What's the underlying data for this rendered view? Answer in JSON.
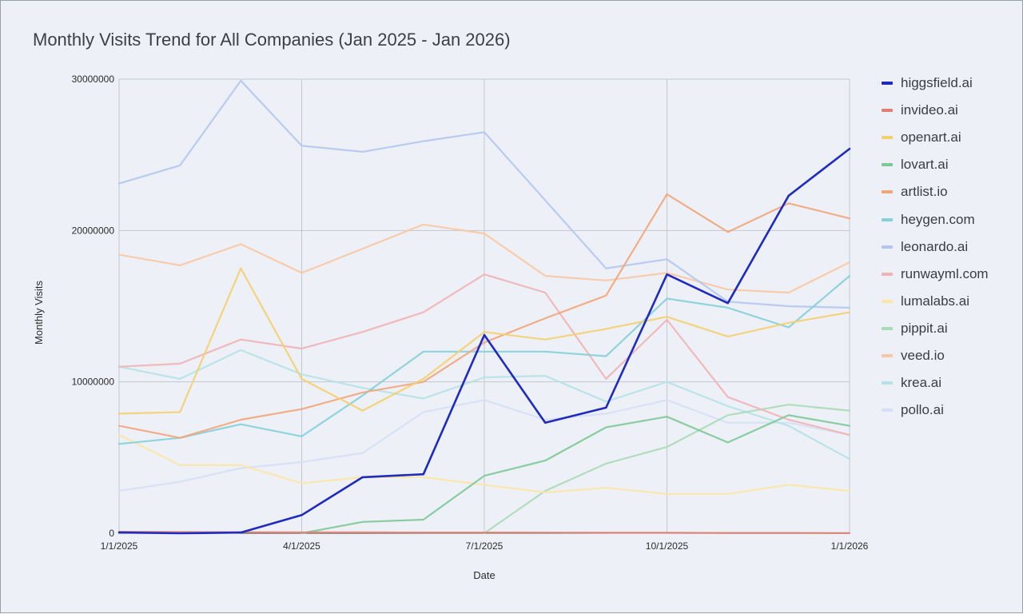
{
  "chart_data": {
    "type": "line",
    "title": "Monthly Visits Trend for All Companies (Jan 2025 - Jan 2026)",
    "xlabel": "Date",
    "ylabel": "Monthly Visits",
    "ylim": [
      0,
      30000000
    ],
    "yticks": [
      "0",
      "10000000",
      "20000000",
      "30000000"
    ],
    "xticks": [
      "1/1/2025",
      "4/1/2025",
      "7/1/2025",
      "10/1/2025",
      "1/1/2026"
    ],
    "x": [
      "1/1/2025",
      "2/1/2025",
      "3/1/2025",
      "4/1/2025",
      "5/1/2025",
      "6/1/2025",
      "7/1/2025",
      "8/1/2025",
      "9/1/2025",
      "10/1/2025",
      "11/1/2025",
      "12/1/2025",
      "1/1/2026"
    ],
    "grid": true,
    "legend_position": "right",
    "series": [
      {
        "name": "higgsfield.ai",
        "color": "#1f2bbf",
        "opacity": 1,
        "values": [
          50000,
          0,
          50000,
          1200000,
          3700000,
          3900000,
          13100000,
          7300000,
          8300000,
          17100000,
          15200000,
          22300000,
          25400000
        ]
      },
      {
        "name": "invideo.ai",
        "color": "#e0806e",
        "opacity": 0.9,
        "values": [
          100000,
          80000,
          70000,
          60000,
          60000,
          50000,
          50000,
          40000,
          30000,
          30000,
          20000,
          20000,
          10000
        ]
      },
      {
        "name": "openart.ai",
        "color": "#f3cf6e",
        "opacity": 0.9,
        "values": [
          7900000,
          8000000,
          17500000,
          10200000,
          8100000,
          10200000,
          13300000,
          12800000,
          13500000,
          14300000,
          13000000,
          13900000,
          14600000
        ]
      },
      {
        "name": "lovart.ai",
        "color": "#7cc996",
        "opacity": 0.9,
        "values": [
          null,
          null,
          null,
          0,
          750000,
          900000,
          3800000,
          4800000,
          7000000,
          7700000,
          6000000,
          7800000,
          7100000
        ]
      },
      {
        "name": "artlist.io",
        "color": "#f2a57a",
        "opacity": 0.9,
        "values": [
          7100000,
          6300000,
          7500000,
          8200000,
          9300000,
          10000000,
          12600000,
          14200000,
          15700000,
          22400000,
          19900000,
          21800000,
          20800000
        ]
      },
      {
        "name": "heygen.com",
        "color": "#84d0d8",
        "opacity": 0.9,
        "values": [
          5900000,
          6300000,
          7200000,
          6400000,
          9100000,
          12000000,
          12000000,
          12000000,
          11700000,
          15500000,
          14900000,
          13600000,
          17000000
        ]
      },
      {
        "name": "leonardo.ai",
        "color": "#b3c7ee",
        "opacity": 0.9,
        "values": [
          23100000,
          24300000,
          29900000,
          25600000,
          25200000,
          25900000,
          26500000,
          22000000,
          17500000,
          18100000,
          15300000,
          15000000,
          14900000
        ]
      },
      {
        "name": "runwayml.com",
        "color": "#f0b2b4",
        "opacity": 0.9,
        "values": [
          11000000,
          11200000,
          12800000,
          12200000,
          13300000,
          14600000,
          17100000,
          15900000,
          10200000,
          14100000,
          9000000,
          7500000,
          6500000
        ]
      },
      {
        "name": "lumalabs.ai",
        "color": "#fbe6a4",
        "opacity": 0.9,
        "values": [
          6500000,
          4500000,
          4500000,
          3300000,
          3700000,
          3700000,
          3200000,
          2700000,
          3000000,
          2600000,
          2600000,
          3200000,
          2800000
        ]
      },
      {
        "name": "pippit.ai",
        "color": "#a9dcb6",
        "opacity": 0.9,
        "values": [
          null,
          null,
          null,
          null,
          null,
          null,
          0,
          2800000,
          4600000,
          5700000,
          7800000,
          8500000,
          8100000
        ]
      },
      {
        "name": "veed.io",
        "color": "#f8c6a2",
        "opacity": 0.9,
        "values": [
          18400000,
          17700000,
          19100000,
          17200000,
          18800000,
          20400000,
          19800000,
          17000000,
          16700000,
          17200000,
          16100000,
          15900000,
          17900000
        ]
      },
      {
        "name": "krea.ai",
        "color": "#b4e2e6",
        "opacity": 0.9,
        "values": [
          11000000,
          10200000,
          12100000,
          10500000,
          9600000,
          8900000,
          10300000,
          10400000,
          8700000,
          10000000,
          8400000,
          7100000,
          4900000
        ]
      },
      {
        "name": "pollo.ai",
        "color": "#d5e0f6",
        "opacity": 0.9,
        "values": [
          2800000,
          3400000,
          4300000,
          4700000,
          5300000,
          8000000,
          8800000,
          7500000,
          7900000,
          8800000,
          7300000,
          7300000,
          6500000
        ]
      }
    ]
  }
}
